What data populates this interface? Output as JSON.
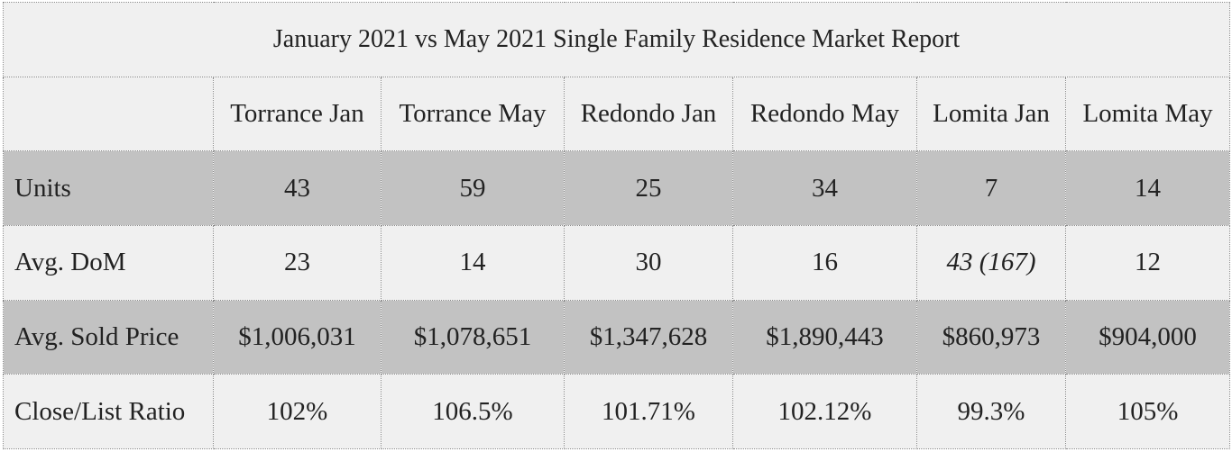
{
  "report": {
    "title": "January 2021 vs May 2021 Single Family Residence Market Report",
    "columns": [
      "",
      "Torrance Jan",
      "Torrance May",
      "Redondo Jan",
      "Redondo May",
      "Lomita Jan",
      "Lomita May"
    ],
    "rows": [
      {
        "label": "Units",
        "values": [
          "43",
          "59",
          "25",
          "34",
          "7",
          "14"
        ]
      },
      {
        "label": "Avg. DoM",
        "values": [
          "23",
          "14",
          "30",
          "16",
          "43 (167)",
          "12"
        ]
      },
      {
        "label": "Avg. Sold Price",
        "values": [
          "$1,006,031",
          "$1,078,651",
          "$1,347,628",
          "$1,890,443",
          "$860,973",
          "$904,000"
        ]
      },
      {
        "label": "Close/List Ratio",
        "values": [
          "102%",
          "106.5%",
          "101.71%",
          "102.12%",
          "99.3%",
          "105%"
        ]
      }
    ]
  },
  "colors": {
    "shaded_row": "#c2c2c2",
    "plain_row": "#f0f0f0",
    "border": "#8a8a8a",
    "text": "#222222"
  }
}
